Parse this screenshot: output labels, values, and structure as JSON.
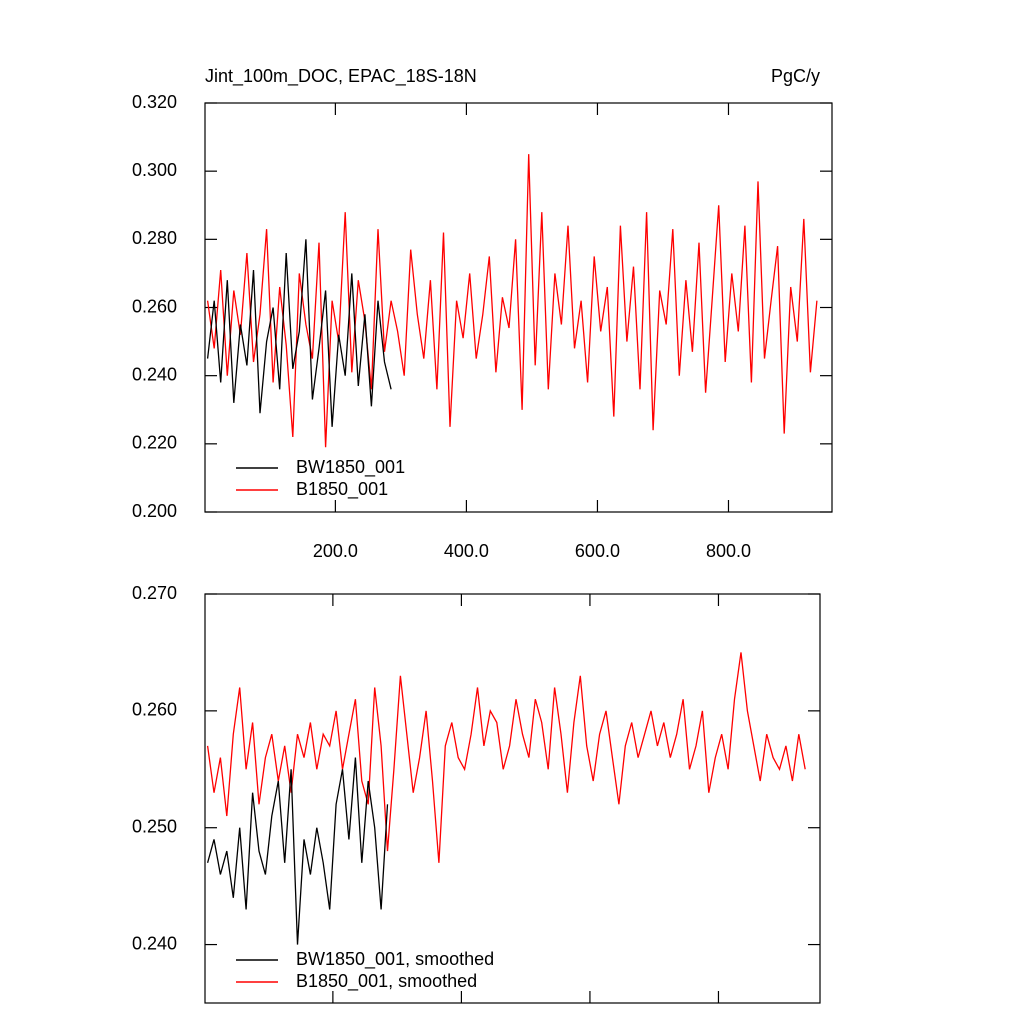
{
  "chart_data": [
    {
      "type": "line",
      "title": "Jint_100m_DOC, EPAC_18S-18N",
      "units_label": "PgC/y",
      "xlim": [
        1,
        958
      ],
      "xticks": [
        {
          "value": 200,
          "label": "200.0"
        },
        {
          "value": 400,
          "label": "400.0"
        },
        {
          "value": 600,
          "label": "600.0"
        },
        {
          "value": 800,
          "label": "800.0"
        }
      ],
      "ylim": [
        0.2,
        0.32
      ],
      "yticks": [
        {
          "value": 0.2,
          "label": "0.200"
        },
        {
          "value": 0.22,
          "label": "0.220"
        },
        {
          "value": 0.24,
          "label": "0.240"
        },
        {
          "value": 0.26,
          "label": "0.260"
        },
        {
          "value": 0.28,
          "label": "0.280"
        },
        {
          "value": 0.3,
          "label": "0.300"
        },
        {
          "value": 0.32,
          "label": "0.320"
        }
      ],
      "series": [
        {
          "name": "BW1850_001",
          "color": "#000000",
          "x": [
            5,
            15,
            25,
            35,
            45,
            55,
            65,
            75,
            85,
            95,
            105,
            115,
            125,
            135,
            145,
            155,
            165,
            175,
            185,
            195,
            205,
            215,
            225,
            235,
            245,
            255,
            265,
            275,
            285
          ],
          "values": [
            0.245,
            0.262,
            0.238,
            0.268,
            0.232,
            0.255,
            0.243,
            0.271,
            0.229,
            0.25,
            0.26,
            0.236,
            0.276,
            0.242,
            0.253,
            0.28,
            0.233,
            0.248,
            0.265,
            0.225,
            0.252,
            0.24,
            0.27,
            0.237,
            0.258,
            0.231,
            0.262,
            0.244,
            0.236
          ]
        },
        {
          "name": "B1850_001",
          "color": "#ff0000",
          "x": [
            5,
            15,
            25,
            35,
            45,
            55,
            65,
            75,
            85,
            95,
            105,
            115,
            125,
            135,
            145,
            155,
            165,
            175,
            185,
            195,
            205,
            215,
            225,
            235,
            245,
            255,
            265,
            275,
            285,
            295,
            305,
            315,
            325,
            335,
            345,
            355,
            365,
            375,
            385,
            395,
            405,
            415,
            425,
            435,
            445,
            455,
            465,
            475,
            485,
            495,
            505,
            515,
            525,
            535,
            545,
            555,
            565,
            575,
            585,
            595,
            605,
            615,
            625,
            635,
            645,
            655,
            665,
            675,
            685,
            695,
            705,
            715,
            725,
            735,
            745,
            755,
            765,
            775,
            785,
            795,
            805,
            815,
            825,
            835,
            845,
            855,
            865,
            875,
            885,
            895,
            905,
            915,
            925,
            935
          ],
          "values": [
            0.262,
            0.248,
            0.271,
            0.24,
            0.265,
            0.252,
            0.276,
            0.244,
            0.258,
            0.283,
            0.238,
            0.266,
            0.249,
            0.222,
            0.27,
            0.255,
            0.245,
            0.279,
            0.219,
            0.262,
            0.25,
            0.288,
            0.241,
            0.268,
            0.256,
            0.236,
            0.283,
            0.247,
            0.262,
            0.253,
            0.24,
            0.277,
            0.258,
            0.245,
            0.268,
            0.236,
            0.282,
            0.225,
            0.262,
            0.251,
            0.27,
            0.245,
            0.258,
            0.275,
            0.241,
            0.263,
            0.254,
            0.28,
            0.23,
            0.305,
            0.243,
            0.288,
            0.236,
            0.27,
            0.255,
            0.284,
            0.248,
            0.262,
            0.238,
            0.275,
            0.253,
            0.266,
            0.228,
            0.284,
            0.25,
            0.272,
            0.236,
            0.288,
            0.224,
            0.265,
            0.255,
            0.283,
            0.24,
            0.268,
            0.247,
            0.279,
            0.235,
            0.262,
            0.29,
            0.244,
            0.27,
            0.253,
            0.284,
            0.238,
            0.297,
            0.245,
            0.262,
            0.278,
            0.223,
            0.266,
            0.25,
            0.286,
            0.241,
            0.262
          ]
        }
      ]
    },
    {
      "type": "line",
      "xlim": [
        1,
        958
      ],
      "xticks": [
        200,
        400,
        600,
        800
      ],
      "ylim": [
        0.235,
        0.27
      ],
      "yticks": [
        {
          "value": 0.24,
          "label": "0.240"
        },
        {
          "value": 0.25,
          "label": "0.250"
        },
        {
          "value": 0.26,
          "label": "0.260"
        },
        {
          "value": 0.27,
          "label": "0.270"
        }
      ],
      "series": [
        {
          "name": "BW1850_001, smoothed",
          "color": "#000000",
          "x": [
            5,
            15,
            25,
            35,
            45,
            55,
            65,
            75,
            85,
            95,
            105,
            115,
            125,
            135,
            145,
            155,
            165,
            175,
            185,
            195,
            205,
            215,
            225,
            235,
            245,
            255,
            265,
            275,
            285
          ],
          "values": [
            0.247,
            0.249,
            0.246,
            0.248,
            0.244,
            0.25,
            0.243,
            0.253,
            0.248,
            0.246,
            0.251,
            0.254,
            0.247,
            0.255,
            0.24,
            0.249,
            0.246,
            0.25,
            0.247,
            0.243,
            0.252,
            0.255,
            0.249,
            0.256,
            0.247,
            0.254,
            0.25,
            0.243,
            0.252
          ]
        },
        {
          "name": "B1850_001, smoothed",
          "color": "#ff0000",
          "x": [
            5,
            15,
            25,
            35,
            45,
            55,
            65,
            75,
            85,
            95,
            105,
            115,
            125,
            135,
            145,
            155,
            165,
            175,
            185,
            195,
            205,
            215,
            225,
            235,
            245,
            255,
            265,
            275,
            285,
            295,
            305,
            315,
            325,
            335,
            345,
            355,
            365,
            375,
            385,
            395,
            405,
            415,
            425,
            435,
            445,
            455,
            465,
            475,
            485,
            495,
            505,
            515,
            525,
            535,
            545,
            555,
            565,
            575,
            585,
            595,
            605,
            615,
            625,
            635,
            645,
            655,
            665,
            675,
            685,
            695,
            705,
            715,
            725,
            735,
            745,
            755,
            765,
            775,
            785,
            795,
            805,
            815,
            825,
            835,
            845,
            855,
            865,
            875,
            885,
            895,
            905,
            915,
            925,
            935
          ],
          "values": [
            0.257,
            0.253,
            0.256,
            0.251,
            0.258,
            0.262,
            0.255,
            0.259,
            0.252,
            0.256,
            0.258,
            0.254,
            0.257,
            0.253,
            0.258,
            0.256,
            0.259,
            0.255,
            0.258,
            0.257,
            0.26,
            0.255,
            0.258,
            0.261,
            0.254,
            0.252,
            0.262,
            0.257,
            0.248,
            0.255,
            0.263,
            0.258,
            0.253,
            0.256,
            0.26,
            0.254,
            0.247,
            0.257,
            0.259,
            0.256,
            0.255,
            0.258,
            0.262,
            0.257,
            0.26,
            0.259,
            0.255,
            0.257,
            0.261,
            0.258,
            0.256,
            0.261,
            0.259,
            0.255,
            0.262,
            0.258,
            0.253,
            0.259,
            0.263,
            0.257,
            0.254,
            0.258,
            0.26,
            0.256,
            0.252,
            0.257,
            0.259,
            0.256,
            0.258,
            0.26,
            0.257,
            0.259,
            0.256,
            0.258,
            0.261,
            0.255,
            0.257,
            0.26,
            0.253,
            0.256,
            0.258,
            0.255,
            0.261,
            0.265,
            0.26,
            0.257,
            0.254,
            0.258,
            0.256,
            0.255,
            0.257,
            0.254,
            0.258,
            0.255
          ]
        }
      ]
    }
  ]
}
